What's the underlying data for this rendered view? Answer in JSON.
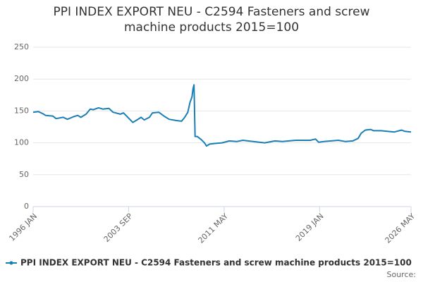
{
  "chart_data": {
    "type": "line",
    "title": "PPI INDEX EXPORT NEU - C2594 Fasteners and screw machine products 2015=100",
    "source": "Source:",
    "x": [
      "1996-01",
      "1996-06",
      "1996-10",
      "1997-01",
      "1997-08",
      "1997-11",
      "1998-06",
      "1998-10",
      "1999-04",
      "1999-08",
      "1999-11",
      "2000-04",
      "2000-08",
      "2000-11",
      "2001-04",
      "2001-08",
      "2002-02",
      "2002-06",
      "2003-01",
      "2003-04",
      "2003-07",
      "2004-01",
      "2004-05",
      "2004-09",
      "2004-12",
      "2005-05",
      "2005-08",
      "2006-02",
      "2006-07",
      "2006-12",
      "2007-07",
      "2007-12",
      "2008-03",
      "2008-06",
      "2008-08",
      "2008-10",
      "2008-11",
      "2008-12",
      "2009-01",
      "2009-03",
      "2009-07",
      "2009-10",
      "2009-12",
      "2010-03",
      "2010-08",
      "2011-03",
      "2011-10",
      "2012-05",
      "2012-11",
      "2013-09",
      "2014-08",
      "2015-06",
      "2016-01",
      "2017-02",
      "2018-04",
      "2018-09",
      "2018-12",
      "2019-05",
      "2019-12",
      "2020-07",
      "2021-02",
      "2021-09",
      "2022-02",
      "2022-05",
      "2022-09",
      "2023-02",
      "2023-05",
      "2023-12",
      "2024-06",
      "2025-01",
      "2025-08",
      "2025-11",
      "2026-05"
    ],
    "series": [
      {
        "name": "PPI INDEX EXPORT NEU - C2594 Fasteners and screw machine products 2015=100",
        "color": "#1a7fb5",
        "values": [
          148,
          149,
          146,
          143,
          142,
          138,
          140,
          137,
          141,
          143,
          140,
          145,
          153,
          152,
          155,
          153,
          154,
          148,
          145,
          147,
          142,
          132,
          136,
          140,
          136,
          140,
          147,
          148,
          142,
          137,
          135,
          134,
          140,
          148,
          163,
          172,
          185,
          191,
          110,
          110,
          105,
          100,
          95,
          98,
          99,
          100,
          103,
          102,
          104,
          102,
          100,
          103,
          102,
          104,
          104,
          106,
          101,
          102,
          103,
          104,
          102,
          103,
          107,
          115,
          120,
          121,
          119,
          119,
          118,
          117,
          120,
          118,
          117
        ]
      }
    ],
    "xlim": [
      "1996-01",
      "2026-05"
    ],
    "xticks": [
      {
        "value": "1996-01",
        "label": "1996 JAN"
      },
      {
        "value": "2003-09",
        "label": "2003 SEP"
      },
      {
        "value": "2011-05",
        "label": "2011 MAY"
      },
      {
        "value": "2019-01",
        "label": "2019 JAN"
      },
      {
        "value": "2026-05",
        "label": "2026 MAY"
      }
    ],
    "ylim": [
      0,
      250
    ],
    "yticks": [
      0,
      50,
      100,
      150,
      200,
      250
    ],
    "grid": true
  }
}
